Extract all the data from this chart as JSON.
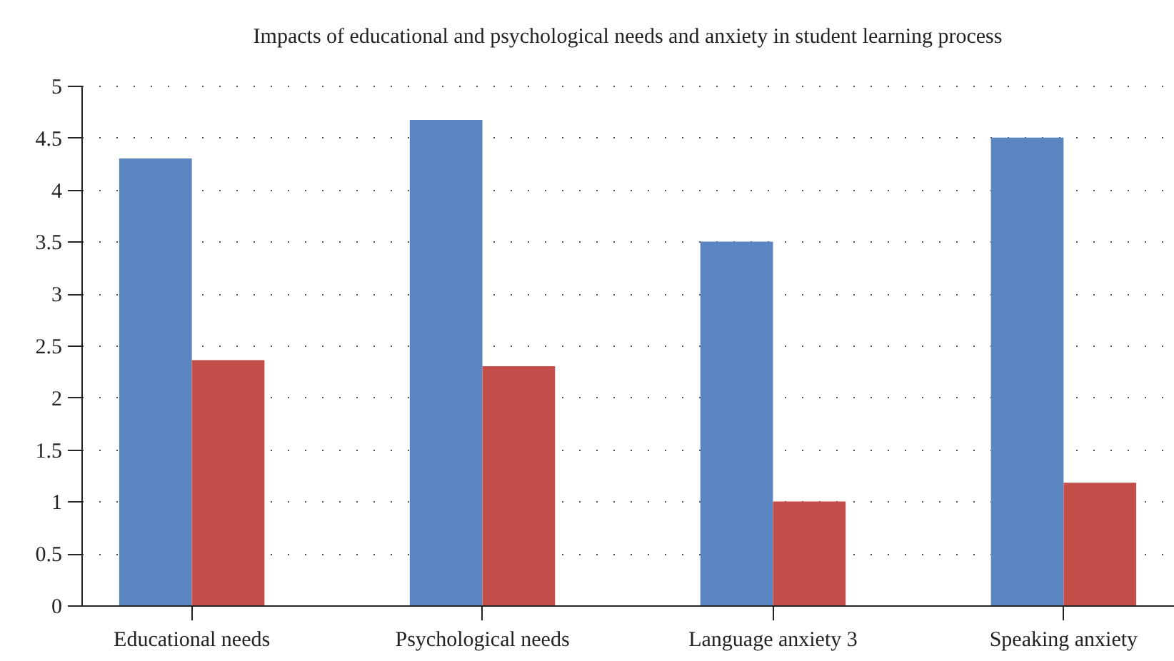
{
  "chart_data": {
    "type": "bar",
    "title": "Impacts of educational and psychological needs and anxiety in student learning process",
    "categories": [
      "Educational needs",
      "Psychological needs",
      "Language anxiety 3",
      "Speaking anxiety"
    ],
    "series": [
      {
        "color": "#5b85c1",
        "values": [
          4.3,
          4.67,
          3.5,
          4.5
        ]
      },
      {
        "color": "#c44f4a",
        "values": [
          2.36,
          2.3,
          1.0,
          1.18
        ]
      }
    ],
    "ylim": [
      0,
      5
    ],
    "yticks": [
      0,
      0.5,
      1,
      1.5,
      2,
      2.5,
      3,
      3.5,
      4,
      4.5,
      5
    ],
    "grid": "y"
  }
}
